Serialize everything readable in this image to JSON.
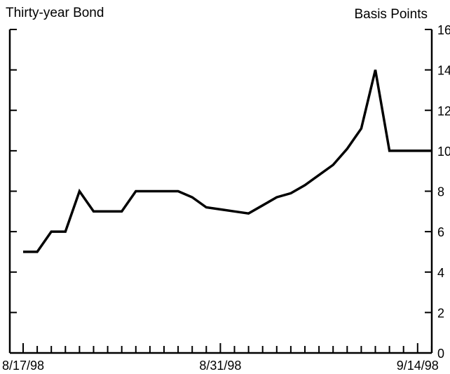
{
  "chart_data": {
    "type": "line",
    "title": "Thirty-year Bond",
    "ylabel": "Basis Points",
    "xlabel": "",
    "ylim": [
      0,
      16
    ],
    "yticks": [
      0,
      2,
      4,
      6,
      8,
      10,
      12,
      14,
      16
    ],
    "ytick_labels": [
      "0",
      "2",
      "4",
      "6",
      "8",
      "10",
      "12",
      "14",
      "16"
    ],
    "x_day_range": [
      0,
      28
    ],
    "x_tick_labels": [
      {
        "label": "8/17/98",
        "day": 0
      },
      {
        "label": "8/31/98",
        "day": 14
      },
      {
        "label": "9/14/98",
        "day": 28
      }
    ],
    "grid": false,
    "series": [
      {
        "days": [
          0,
          1,
          2,
          3,
          4,
          5,
          6,
          7,
          8,
          9,
          10,
          11,
          12,
          13,
          14,
          15,
          16,
          17,
          18,
          19,
          20,
          21,
          22,
          23,
          24,
          25,
          26,
          27,
          28,
          29
        ],
        "values": [
          5,
          5,
          6,
          6,
          8,
          7,
          7,
          7,
          8,
          8,
          8,
          8,
          7.7,
          7.2,
          7.1,
          7,
          6.9,
          7.3,
          7.7,
          7.9,
          8.3,
          8.8,
          9.3,
          10.1,
          11.1,
          14,
          10,
          10,
          10,
          10
        ]
      }
    ]
  }
}
